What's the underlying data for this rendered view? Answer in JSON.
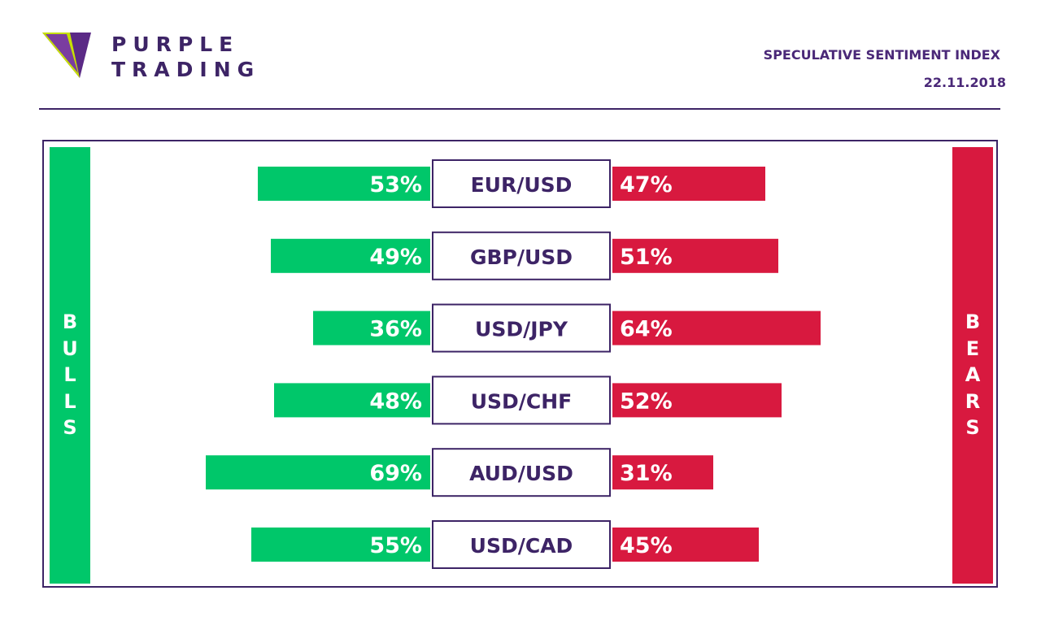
{
  "header": {
    "brand_line1": "PURPLE",
    "brand_line2": "TRADING",
    "title": "SPECULATIVE SENTIMENT INDEX",
    "date": "22.11.2018"
  },
  "side_labels": {
    "bulls": "BULLS",
    "bears": "BEARS"
  },
  "colors": {
    "bulls": "#00c76a",
    "bears": "#d8193f",
    "brand": "#3d2466",
    "logo_accent": "#c6e000"
  },
  "chart_data": {
    "type": "bar",
    "title": "SPECULATIVE SENTIMENT INDEX",
    "categories": [
      "EUR/USD",
      "GBP/USD",
      "USD/JPY",
      "USD/CHF",
      "AUD/USD",
      "USD/CAD"
    ],
    "series": [
      {
        "name": "BULLS",
        "values": [
          53,
          49,
          36,
          48,
          69,
          55
        ],
        "labels": [
          "53%",
          "49%",
          "36%",
          "48%",
          "69%",
          "55%"
        ]
      },
      {
        "name": "BEARS",
        "values": [
          47,
          51,
          64,
          52,
          31,
          45
        ],
        "labels": [
          "47%",
          "51%",
          "64%",
          "52%",
          "31%",
          "45%"
        ]
      }
    ],
    "unit": "%",
    "grid": false
  }
}
